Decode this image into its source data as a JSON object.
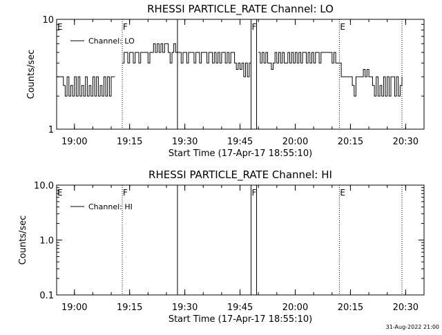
{
  "colors": {
    "background": "#ffffff",
    "ink": "#000000"
  },
  "footer": {
    "timestamp": "31-Aug-2022 21:00"
  },
  "chart_data": [
    {
      "id": "lo",
      "type": "line",
      "title": "RHESSI PARTICLE_RATE Channel: LO",
      "xlabel": "Start Time (17-Apr-17 18:55:10)",
      "ylabel": "Counts/sec",
      "y_scale": "log",
      "ylim": [
        1,
        10
      ],
      "y_ticks": [
        {
          "value": 1,
          "label": "1"
        },
        {
          "value": 10,
          "label": "10"
        }
      ],
      "xlim": [
        "18:55:10",
        "20:35:00"
      ],
      "x_ticks": [
        "19:00",
        "19:15",
        "19:30",
        "19:45",
        "20:00",
        "20:15",
        "20:30"
      ],
      "legend": {
        "position": "top-left",
        "entries": [
          "Channel: LO"
        ]
      },
      "markers": [
        {
          "time": "18:55:10",
          "label": "E",
          "style": "none"
        },
        {
          "time": "19:13:00",
          "label": "F",
          "style": "dotted"
        },
        {
          "time": "19:28:00",
          "label": "",
          "style": "solid"
        },
        {
          "time": "19:48:00",
          "label": "F",
          "style": "solid"
        },
        {
          "time": "19:49:30",
          "label": "",
          "style": "solid"
        },
        {
          "time": "20:12:00",
          "label": "E",
          "style": "dotted"
        },
        {
          "time": "20:29:00",
          "label": "",
          "style": "dotted"
        }
      ],
      "series": [
        {
          "name": "Channel: LO",
          "x": [
            "18:55:10",
            "18:56:30",
            "18:57:00",
            "18:57:30",
            "18:58:00",
            "18:58:30",
            "18:59:00",
            "18:59:30",
            "19:00:00",
            "19:00:30",
            "19:01:00",
            "19:01:30",
            "19:02:00",
            "19:02:30",
            "19:03:00",
            "19:03:30",
            "19:04:00",
            "19:04:30",
            "19:05:00",
            "19:05:30",
            "19:06:00",
            "19:06:30",
            "19:07:00",
            "19:07:30",
            "19:08:00",
            "19:08:30",
            "19:09:00",
            "19:09:30",
            "19:10:00",
            "19:10:30",
            "19:11:00",
            "19:13:00",
            "19:13:30",
            "19:14:00",
            "19:14:30",
            "19:15:00",
            "19:15:30",
            "19:16:00",
            "19:16:30",
            "19:17:00",
            "19:17:30",
            "19:18:00",
            "19:18:30",
            "19:19:00",
            "19:19:30",
            "19:20:00",
            "19:20:30",
            "19:21:00",
            "19:21:30",
            "19:22:00",
            "19:22:30",
            "19:23:00",
            "19:23:30",
            "19:24:00",
            "19:24:30",
            "19:25:00",
            "19:25:30",
            "19:26:00",
            "19:26:30",
            "19:27:00",
            "19:27:30",
            "19:28:00",
            "19:28:30",
            "19:29:00",
            "19:29:30",
            "19:30:00",
            "19:30:30",
            "19:31:00",
            "19:31:30",
            "19:32:00",
            "19:32:30",
            "19:33:00",
            "19:33:30",
            "19:34:00",
            "19:34:30",
            "19:35:00",
            "19:35:30",
            "19:36:00",
            "19:36:30",
            "19:37:00",
            "19:37:30",
            "19:38:00",
            "19:38:30",
            "19:39:00",
            "19:39:30",
            "19:40:00",
            "19:40:30",
            "19:41:00",
            "19:41:30",
            "19:42:00",
            "19:42:30",
            "19:43:00",
            "19:43:30",
            "19:44:00",
            "19:44:30",
            "19:45:00",
            "19:45:30",
            "19:46:00",
            "19:46:30",
            "19:47:00",
            "19:47:30",
            "19:48:00",
            "19:50:00",
            "19:50:30",
            "19:51:00",
            "19:51:30",
            "19:52:00",
            "19:52:30",
            "19:53:00",
            "19:53:30",
            "19:54:00",
            "19:54:30",
            "19:55:00",
            "19:55:30",
            "19:56:00",
            "19:56:30",
            "19:57:00",
            "19:57:30",
            "19:58:00",
            "19:58:30",
            "19:59:00",
            "19:59:30",
            "20:00:00",
            "20:00:30",
            "20:01:00",
            "20:01:30",
            "20:02:00",
            "20:02:30",
            "20:03:00",
            "20:03:30",
            "20:04:00",
            "20:04:30",
            "20:05:00",
            "20:05:30",
            "20:06:00",
            "20:06:30",
            "20:07:00",
            "20:07:30",
            "20:08:00",
            "20:08:30",
            "20:09:00",
            "20:09:30",
            "20:10:00",
            "20:10:30",
            "20:11:00",
            "20:11:30",
            "20:12:00",
            "20:12:30",
            "20:13:00",
            "20:13:30",
            "20:14:00",
            "20:14:30",
            "20:15:00",
            "20:15:30",
            "20:16:00",
            "20:16:30",
            "20:17:00",
            "20:17:30",
            "20:18:00",
            "20:18:30",
            "20:19:00",
            "20:19:30",
            "20:20:00",
            "20:20:30",
            "20:21:00",
            "20:21:30",
            "20:22:00",
            "20:22:30",
            "20:23:00",
            "20:23:30",
            "20:24:00",
            "20:24:30",
            "20:25:00",
            "20:25:30",
            "20:26:00",
            "20:26:30",
            "20:27:00",
            "20:27:30",
            "20:28:00",
            "20:28:30",
            "20:29:00"
          ],
          "y": [
            3,
            3,
            2.5,
            2,
            3,
            2,
            2.5,
            2,
            3,
            2,
            3,
            2,
            2.5,
            2,
            3,
            2,
            2.5,
            2,
            3,
            2,
            3,
            2,
            2.5,
            2,
            3,
            2,
            3,
            2,
            3,
            3,
            3,
            4,
            5,
            5,
            4,
            5,
            5,
            4,
            5,
            5,
            4,
            5,
            5,
            5,
            5,
            4,
            5,
            5,
            6,
            5,
            6,
            5,
            6,
            5,
            6,
            6,
            5,
            4,
            5,
            6,
            5,
            5,
            5,
            4,
            5,
            5,
            4,
            5,
            5,
            5,
            4,
            5,
            5,
            4,
            5,
            5,
            5,
            4,
            5,
            5,
            4,
            5,
            4,
            5,
            4,
            5,
            5,
            4,
            5,
            4,
            5,
            5,
            4,
            3.5,
            4,
            3.5,
            4,
            3,
            4,
            3,
            4,
            4,
            5,
            4,
            5,
            4,
            5,
            4,
            4,
            3.5,
            4,
            5,
            4,
            5,
            4,
            5,
            4,
            4,
            5,
            4,
            5,
            4,
            5,
            4,
            5,
            4,
            5,
            5,
            4,
            5,
            4,
            5,
            4,
            5,
            5,
            4,
            5,
            5,
            5,
            5,
            5,
            5,
            4,
            5,
            4,
            4,
            4,
            3,
            3,
            3,
            3,
            3,
            3,
            2.5,
            2,
            3,
            3,
            3,
            3,
            3.5,
            3,
            3.5,
            3,
            3,
            2.5,
            2,
            3,
            2,
            2.5,
            2,
            3,
            2,
            3,
            2,
            3,
            3,
            2,
            3,
            2,
            2.5,
            3
          ]
        }
      ]
    },
    {
      "id": "hi",
      "type": "line",
      "title": "RHESSI PARTICLE_RATE Channel: HI",
      "xlabel": "Start Time (17-Apr-17 18:55:10)",
      "ylabel": "Counts/sec",
      "y_scale": "log",
      "ylim": [
        0.1,
        10
      ],
      "y_ticks": [
        {
          "value": 0.1,
          "label": "0.1"
        },
        {
          "value": 1,
          "label": "1.0"
        },
        {
          "value": 10,
          "label": "10.0"
        }
      ],
      "xlim": [
        "18:55:10",
        "20:35:00"
      ],
      "x_ticks": [
        "19:00",
        "19:15",
        "19:30",
        "19:45",
        "20:00",
        "20:15",
        "20:30"
      ],
      "legend": {
        "position": "top-left",
        "entries": [
          "Channel: HI"
        ]
      },
      "markers": [
        {
          "time": "18:55:10",
          "label": "E",
          "style": "none"
        },
        {
          "time": "19:13:00",
          "label": "F",
          "style": "dotted"
        },
        {
          "time": "19:28:00",
          "label": "",
          "style": "solid"
        },
        {
          "time": "19:48:00",
          "label": "F",
          "style": "solid"
        },
        {
          "time": "19:49:30",
          "label": "",
          "style": "solid"
        },
        {
          "time": "20:12:00",
          "label": "E",
          "style": "dotted"
        },
        {
          "time": "20:29:00",
          "label": "",
          "style": "dotted"
        }
      ],
      "series": [
        {
          "name": "Channel: HI",
          "x": [],
          "y": []
        }
      ]
    }
  ]
}
